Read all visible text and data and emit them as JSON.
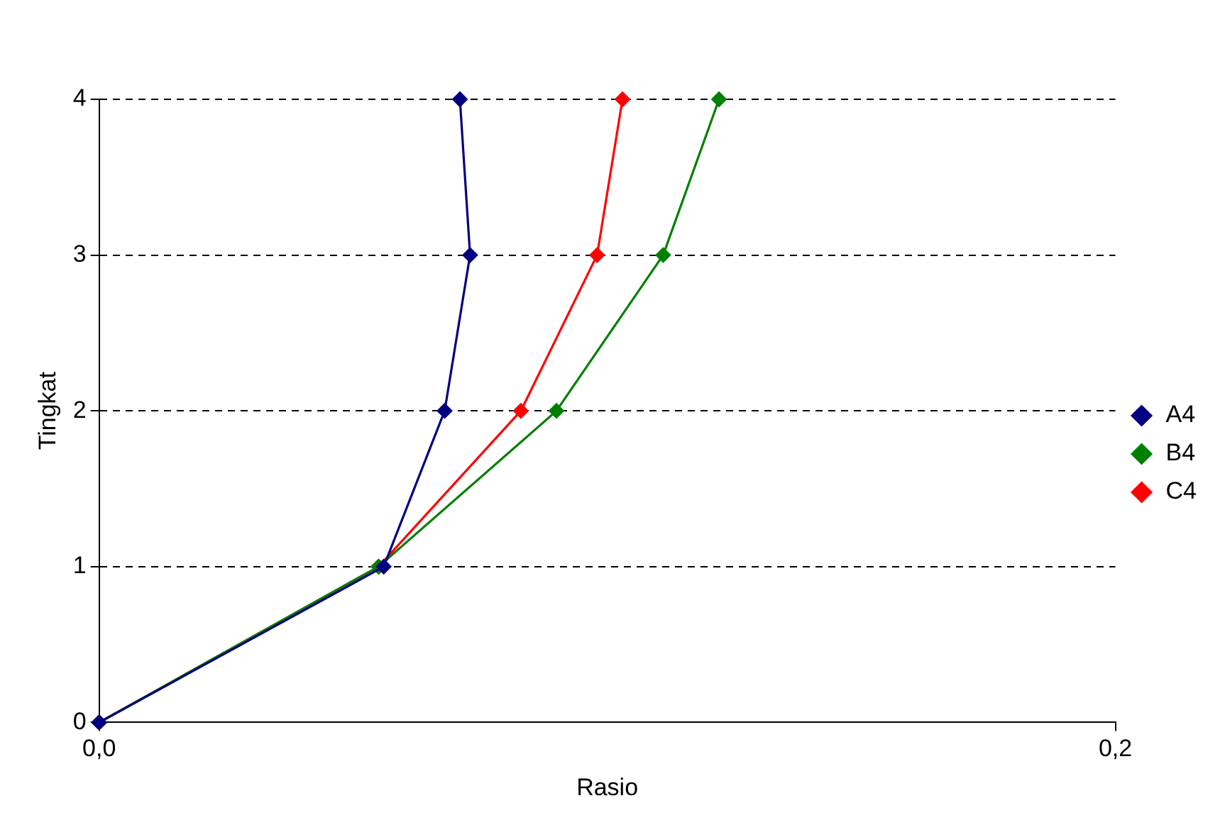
{
  "chart_data": {
    "type": "line",
    "xlabel": "Rasio",
    "ylabel": "Tingkat",
    "xlim": [
      0,
      0.2
    ],
    "xticks": [
      {
        "value": 0,
        "label": "0,0"
      },
      {
        "value": 0.2,
        "label": "0,2"
      }
    ],
    "ylim": [
      0,
      4
    ],
    "yticks": [
      0,
      1,
      2,
      3,
      4
    ],
    "grid": "y",
    "legend": "right",
    "marker": "diamond",
    "line_style": "solid",
    "series": [
      {
        "name": "A4",
        "color": "#000080",
        "x": [
          0,
          0.056,
          0.068,
          0.073,
          0.071
        ],
        "values": [
          0,
          1,
          2,
          3,
          4
        ]
      },
      {
        "name": "B4",
        "color": "#008000",
        "x": [
          0,
          0.055,
          0.09,
          0.111,
          0.122
        ],
        "values": [
          0,
          1,
          2,
          3,
          4
        ]
      },
      {
        "name": "C4",
        "color": "#ff0000",
        "x": [
          0,
          0.055,
          0.083,
          0.098,
          0.103
        ],
        "values": [
          0,
          1,
          2,
          3,
          4
        ]
      }
    ]
  }
}
